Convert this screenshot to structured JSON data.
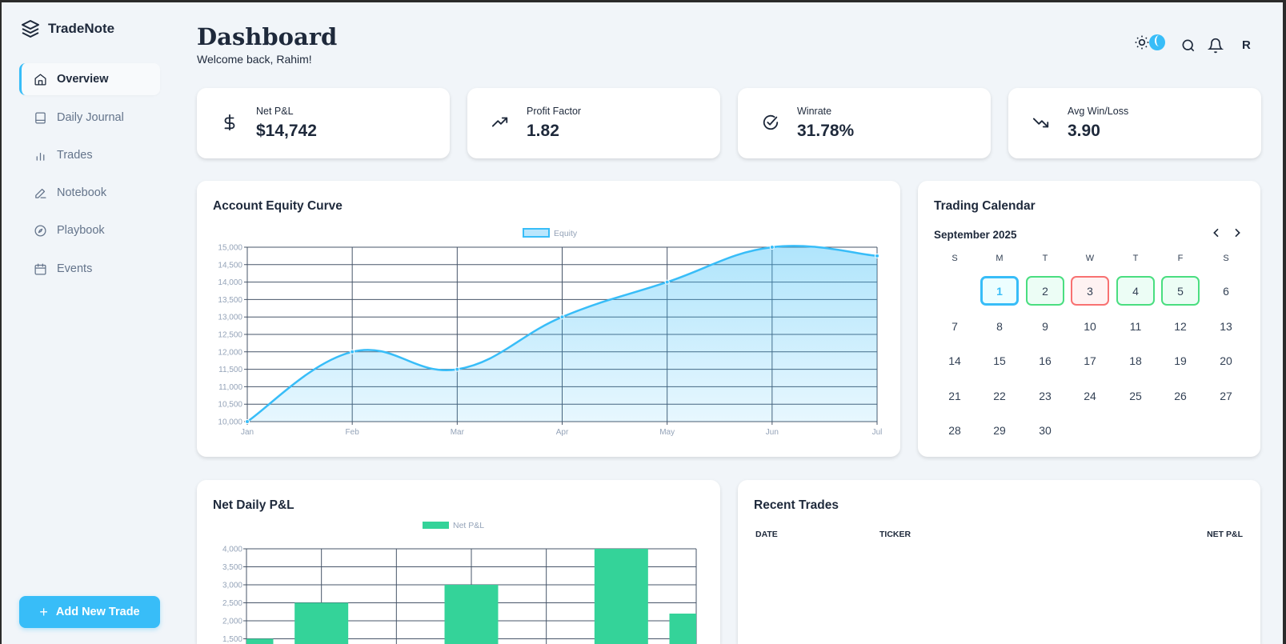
{
  "app": {
    "name": "TradeNote"
  },
  "sidebar": {
    "items": [
      {
        "label": "Overview",
        "icon": "home-icon",
        "active": true
      },
      {
        "label": "Daily Journal",
        "icon": "book-icon"
      },
      {
        "label": "Trades",
        "icon": "bar-chart-icon"
      },
      {
        "label": "Notebook",
        "icon": "pen-icon"
      },
      {
        "label": "Playbook",
        "icon": "compass-icon"
      },
      {
        "label": "Events",
        "icon": "calendar-icon"
      }
    ],
    "add_button": "Add New Trade"
  },
  "header": {
    "title": "Dashboard",
    "subtitle": "Welcome back, Rahim!",
    "avatar": "R"
  },
  "stats": [
    {
      "label": "Net P&L",
      "value": "$14,742",
      "icon": "dollar-icon"
    },
    {
      "label": "Profit Factor",
      "value": "1.82",
      "icon": "trending-up-icon"
    },
    {
      "label": "Winrate",
      "value": "31.78%",
      "icon": "check-circle-icon"
    },
    {
      "label": "Avg Win/Loss",
      "value": "3.90",
      "icon": "trending-down-icon"
    }
  ],
  "calendar": {
    "title": "Trading Calendar",
    "month": "September 2025",
    "weekdays": [
      "S",
      "M",
      "T",
      "W",
      "T",
      "F",
      "S"
    ],
    "first_weekday": 1,
    "days": 30,
    "today": 1,
    "wins": [
      2,
      4,
      5
    ],
    "losses": [
      3
    ]
  },
  "recent_trades": {
    "title": "Recent Trades",
    "columns": [
      "DATE",
      "TICKER",
      "NET P&L"
    ],
    "rows": []
  },
  "colors": {
    "accent": "#38bdf8",
    "win": "#34d399",
    "loss": "#f87171"
  },
  "chart_data": [
    {
      "type": "area",
      "title": "Account Equity Curve",
      "legend": [
        "Equity"
      ],
      "legend_position": "top",
      "categories": [
        "Jan",
        "Feb",
        "Mar",
        "Apr",
        "May",
        "Jun",
        "Jul"
      ],
      "series": [
        {
          "name": "Equity",
          "values": [
            10000,
            12000,
            11500,
            13000,
            14000,
            15000,
            14750
          ]
        }
      ],
      "ylim": [
        10000,
        15000
      ],
      "yticks": [
        "10,000",
        "10,500",
        "11,000",
        "11,500",
        "12,000",
        "12,500",
        "13,000",
        "13,500",
        "14,000",
        "14,500",
        "15,000"
      ],
      "grid": true
    },
    {
      "type": "bar",
      "title": "Net Daily P&L",
      "legend": [
        "Net P&L"
      ],
      "legend_position": "top",
      "series": [
        {
          "name": "Net P&L",
          "values": [
            1500,
            2500,
            null,
            3000,
            null,
            4000,
            2200
          ]
        }
      ],
      "ylim": [
        0,
        4000
      ],
      "yticks": [
        "1,500",
        "2,000",
        "2,500",
        "3,000",
        "3,500",
        "4,000"
      ],
      "grid": true
    }
  ]
}
